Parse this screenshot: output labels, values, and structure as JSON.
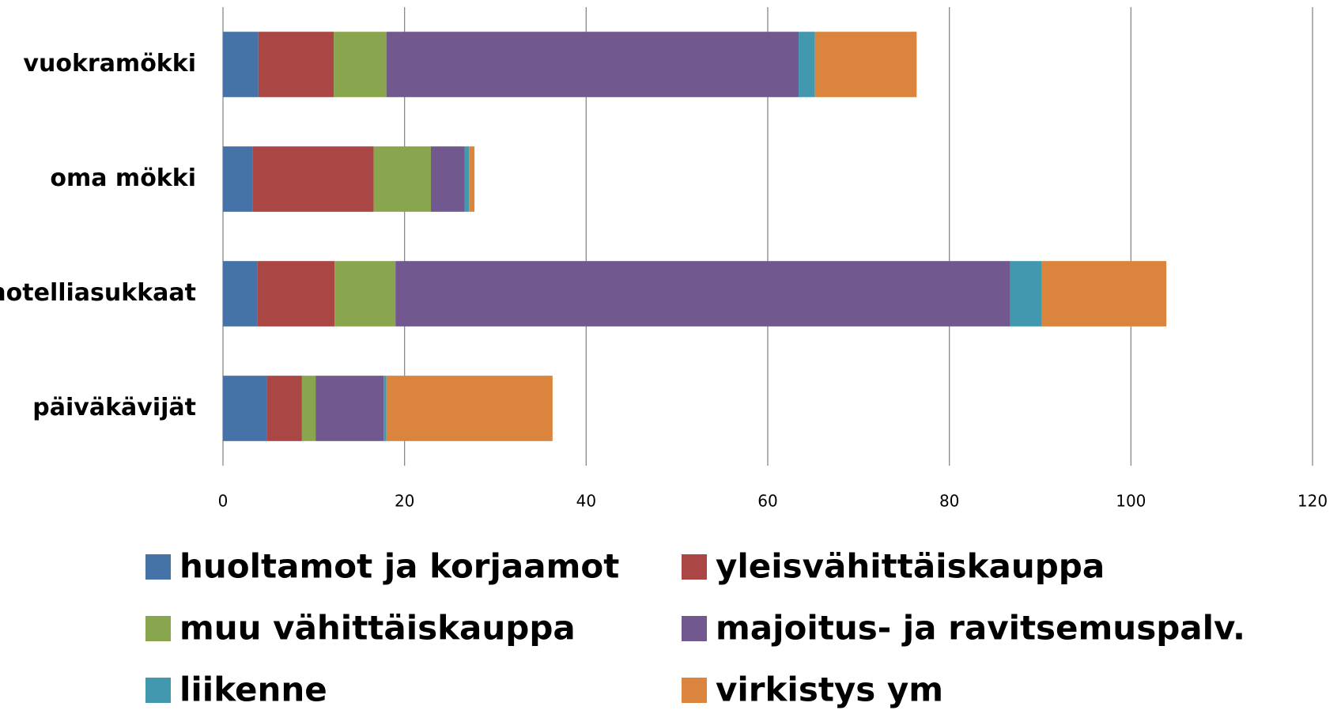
{
  "chart_data": {
    "type": "stacked_bar_horizontal",
    "categories": [
      "vuokramökki",
      "oma mökki",
      "hotelliasukkaat",
      "päiväkävijät"
    ],
    "series": [
      {
        "name": "huoltamot ja korjaamot",
        "color": "#4572a7",
        "values": [
          3.9,
          3.3,
          3.8,
          4.8
        ]
      },
      {
        "name": "yleisvähittäiskauppa",
        "color": "#aa4643",
        "values": [
          8.3,
          13.3,
          8.5,
          3.9
        ]
      },
      {
        "name": "muu vähittäiskauppa",
        "color": "#89a54e",
        "values": [
          5.8,
          6.3,
          6.7,
          1.5
        ]
      },
      {
        "name": "majoitus- ja ravitsemuspalv.",
        "color": "#71588f",
        "values": [
          45.4,
          3.7,
          67.7,
          7.5
        ]
      },
      {
        "name": "liikenne",
        "color": "#4198af",
        "values": [
          1.8,
          0.5,
          3.5,
          0.3
        ]
      },
      {
        "name": "virkistys ym",
        "color": "#db843d",
        "values": [
          11.2,
          0.6,
          13.7,
          18.3
        ]
      }
    ],
    "xlim": [
      0,
      120
    ],
    "xticks": [
      0,
      20,
      40,
      60,
      80,
      100,
      120
    ],
    "grid": true,
    "legend": "bottom"
  }
}
